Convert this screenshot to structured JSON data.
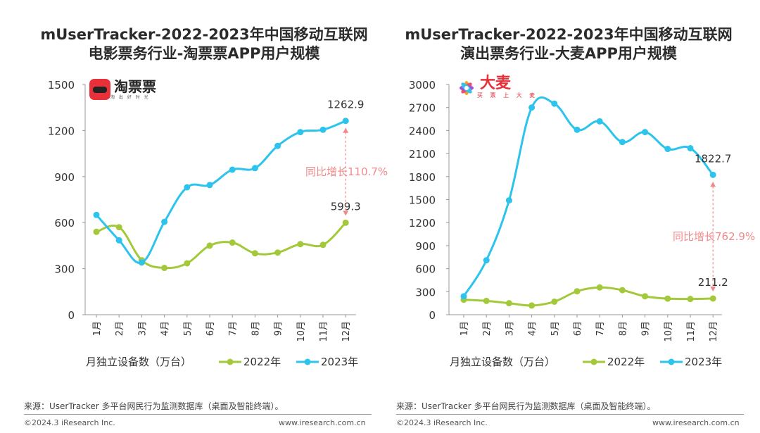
{
  "charts": [
    {
      "title_line1": "mUserTracker-2022-2023年中国移动互联网",
      "title_line2": "电影票务行业-淘票票APP用户规模",
      "logo_text": "淘票票",
      "logo_sub": "淘 出 好 时 光"
    },
    {
      "title_line1": "mUserTracker-2022-2023年中国移动互联网",
      "title_line2": "演出票务行业-大麦APP用户规模",
      "logo_text": "大麦",
      "logo_sub": "买 票 上 大 麦"
    }
  ],
  "chart_data": [
    {
      "type": "line",
      "title": "mUserTracker-2022-2023年中国移动互联网电影票务行业-淘票票APP用户规模",
      "categories": [
        "1月",
        "2月",
        "3月",
        "4月",
        "5月",
        "6月",
        "7月",
        "8月",
        "9月",
        "10月",
        "11月",
        "12月"
      ],
      "ylim": [
        0,
        1500
      ],
      "yticks": [
        0,
        300,
        600,
        900,
        1200,
        1500
      ],
      "ylabel": "月独立设备数（万台）",
      "series": [
        {
          "name": "2022年",
          "color": "#a3c93a",
          "values": [
            540,
            570,
            355,
            305,
            335,
            450,
            470,
            400,
            405,
            460,
            455,
            599.3
          ]
        },
        {
          "name": "2023年",
          "color": "#2cc4ec",
          "values": [
            650,
            485,
            340,
            605,
            830,
            845,
            945,
            955,
            1100,
            1190,
            1205,
            1262.9
          ]
        }
      ],
      "end_labels": {
        "2022年": "599.3",
        "2023年": "1262.9"
      },
      "annotation": "同比增长110.7%",
      "legend": "bottom"
    },
    {
      "type": "line",
      "title": "mUserTracker-2022-2023年中国移动互联网演出票务行业-大麦APP用户规模",
      "categories": [
        "1月",
        "2月",
        "3月",
        "4月",
        "5月",
        "6月",
        "7月",
        "8月",
        "9月",
        "10月",
        "11月",
        "12月"
      ],
      "ylim": [
        0,
        3000
      ],
      "yticks": [
        0,
        300,
        600,
        900,
        1200,
        1500,
        1800,
        2100,
        2400,
        2700,
        3000
      ],
      "ylabel": "月独立设备数（万台）",
      "series": [
        {
          "name": "2022年",
          "color": "#a3c93a",
          "values": [
            195,
            180,
            150,
            120,
            170,
            305,
            355,
            320,
            240,
            210,
            205,
            211.2
          ]
        },
        {
          "name": "2023年",
          "color": "#2cc4ec",
          "values": [
            240,
            710,
            1490,
            2700,
            2750,
            2410,
            2520,
            2250,
            2380,
            2160,
            2170,
            1822.7
          ]
        }
      ],
      "end_labels": {
        "2022年": "211.2",
        "2023年": "1822.7"
      },
      "annotation": "同比增长762.9%",
      "legend": "bottom"
    }
  ],
  "legend_unit_label": "月独立设备数（万台）",
  "footer": {
    "source": "来源：UserTracker 多平台网民行为监测数据库（桌面及智能终端）。",
    "copyright": "©2024.3 iResearch Inc.",
    "website": "www.iresearch.com.cn"
  },
  "colors": {
    "series_2022": "#a3c93a",
    "series_2023": "#2cc4ec",
    "annotation": "#f08a8a",
    "axis": "#999999"
  }
}
